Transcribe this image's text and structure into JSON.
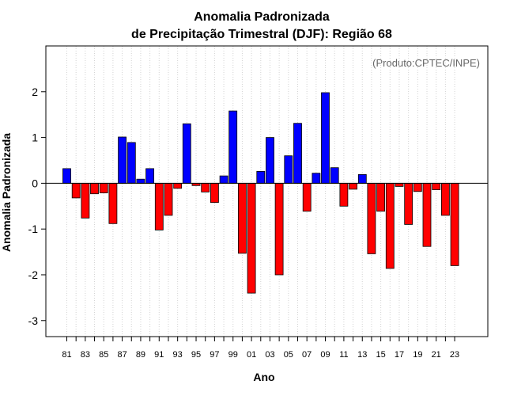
{
  "chart_data": {
    "type": "bar",
    "title": [
      "Anomalia Padronizada",
      "de Precipitação Trimestral (DJF): Região 68"
    ],
    "xlabel": "Ano",
    "ylabel": "Anomalia Padronizada",
    "annotation": "(Produto:CPTEC/INPE)",
    "ylim": [
      -3.35,
      3.0
    ],
    "yticks": [
      -3,
      -2,
      -1,
      0,
      1,
      2
    ],
    "grid": "vertical-dotted",
    "categories": [
      "81",
      "82",
      "83",
      "84",
      "85",
      "86",
      "87",
      "88",
      "89",
      "90",
      "91",
      "92",
      "93",
      "94",
      "95",
      "96",
      "97",
      "98",
      "99",
      "00",
      "01",
      "02",
      "03",
      "04",
      "05",
      "06",
      "07",
      "08",
      "09",
      "10",
      "11",
      "12",
      "13",
      "14",
      "15",
      "16",
      "17",
      "18",
      "19",
      "20",
      "21",
      "22",
      "23"
    ],
    "xtick_labels": [
      "81",
      "83",
      "85",
      "87",
      "89",
      "91",
      "93",
      "95",
      "97",
      "99",
      "01",
      "03",
      "05",
      "07",
      "09",
      "11",
      "13",
      "15",
      "17",
      "19",
      "21",
      "23"
    ],
    "values": [
      0.32,
      -0.32,
      -0.76,
      -0.23,
      -0.21,
      -0.88,
      1.01,
      0.89,
      0.09,
      0.32,
      -1.02,
      -0.7,
      -0.11,
      1.3,
      -0.05,
      -0.19,
      -0.42,
      0.16,
      1.58,
      -1.53,
      -2.4,
      0.26,
      1.0,
      -2.0,
      0.6,
      1.31,
      -0.61,
      0.22,
      1.98,
      0.34,
      -0.5,
      -0.13,
      0.19,
      -1.54,
      -0.61,
      -1.86,
      -0.07,
      -0.9,
      -0.18,
      -1.38,
      -0.14,
      -0.7,
      -1.8
    ],
    "colors": {
      "positive": "#0000ff",
      "negative": "#ff0000",
      "zero_line": "#000000",
      "grid": "#d3d3d3"
    }
  }
}
